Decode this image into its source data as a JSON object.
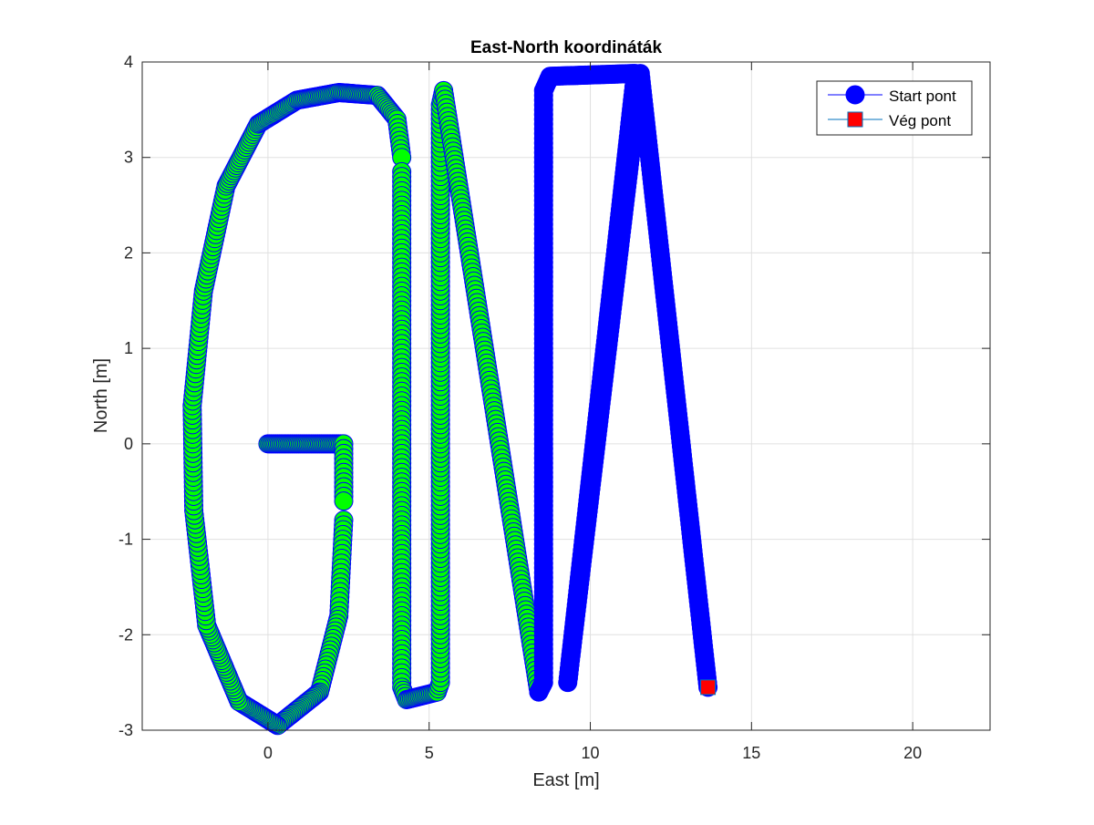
{
  "chart_data": {
    "type": "scatter",
    "title": "East-North koordináták",
    "xlabel": "East [m]",
    "ylabel": "North [m]",
    "xlim": [
      -3.9,
      22.4
    ],
    "ylim": [
      -3,
      4
    ],
    "xticks": [
      0,
      5,
      10,
      15,
      20
    ],
    "xtick_labels": [
      "0",
      "5",
      "10",
      "15",
      "20"
    ],
    "yticks": [
      -3,
      -2,
      -1,
      0,
      1,
      2,
      3,
      4
    ],
    "ytick_labels": [
      "-3",
      "-2",
      "-1",
      "0",
      "1",
      "2",
      "3",
      "4"
    ],
    "grid": true,
    "legend_position": "top-right",
    "legend": [
      {
        "label": "Start pont",
        "marker": "circle",
        "color": "#0000ff"
      },
      {
        "label": "Vég pont",
        "marker": "square",
        "color": "#ff0000"
      }
    ],
    "series": [
      {
        "name": "Start pont",
        "marker": "circle",
        "color": "#0000ff",
        "edge_color": "#0000ff",
        "path_segments": [
          {
            "fill": "#00ff00",
            "points": [
              [
                0,
                0
              ],
              [
                2.35,
                0
              ],
              [
                2.35,
                -0.6
              ]
            ]
          },
          {
            "fill": "#00ff00",
            "points": [
              [
                2.35,
                -0.8
              ],
              [
                2.2,
                -1.8
              ],
              [
                1.6,
                -2.6
              ],
              [
                0.3,
                -2.95
              ],
              [
                -0.9,
                -2.7
              ],
              [
                -1.9,
                -1.9
              ],
              [
                -2.3,
                -0.7
              ],
              [
                -2.35,
                0.4
              ],
              [
                -2.0,
                1.6
              ],
              [
                -1.3,
                2.7
              ],
              [
                -0.3,
                3.35
              ],
              [
                0.9,
                3.6
              ],
              [
                2.2,
                3.68
              ],
              [
                3.4,
                3.65
              ],
              [
                4.0,
                3.4
              ],
              [
                4.15,
                3.0
              ]
            ]
          },
          {
            "fill": "#00ff00",
            "points": [
              [
                4.15,
                2.85
              ],
              [
                4.15,
                -2.55
              ],
              [
                4.3,
                -2.68
              ],
              [
                5.25,
                -2.6
              ],
              [
                5.35,
                -2.5
              ],
              [
                5.35,
                3.55
              ],
              [
                5.45,
                3.7
              ],
              [
                8.4,
                -2.6
              ]
            ]
          },
          {
            "fill": "#0000ff",
            "points": [
              [
                8.4,
                -2.6
              ],
              [
                8.55,
                -2.5
              ],
              [
                8.55,
                3.7
              ],
              [
                8.75,
                3.85
              ],
              [
                11.4,
                3.88
              ],
              [
                9.3,
                -2.5
              ],
              [
                11.55,
                3.88
              ],
              [
                13.65,
                -2.55
              ]
            ]
          }
        ]
      },
      {
        "name": "Vég pont",
        "marker": "square",
        "color": "#ff0000",
        "points": [
          [
            13.65,
            -2.55
          ]
        ]
      }
    ]
  }
}
